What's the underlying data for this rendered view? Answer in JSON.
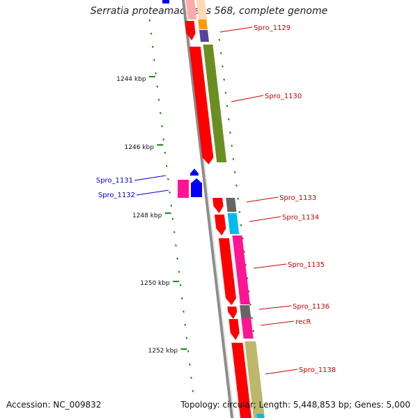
{
  "title": "Serratia proteamaculans 568, complete genome",
  "accession_label": "Accession: NC_009832",
  "info_label": "Topology: circular; Length: 5,448,853 bp; Genes: 5,000",
  "colors": {
    "backbone": "#8c8c8c",
    "cds_forward": "#ff0000",
    "cds_reverse": "#0000ff",
    "label_forward": "#cc0000",
    "label_reverse": "#0000cc",
    "tick": "#1a8a1a",
    "cog_orange": "#ff9900",
    "cog_purple": "#554499",
    "cog_olive": "#6b8e23",
    "cog_gray": "#666666",
    "cog_cyan": "#00bbee",
    "cog_pink": "#ff1493",
    "cog_khaki": "#bdb76b"
  },
  "kbp_labels": [
    "1244 kbp",
    "1246 kbp",
    "1248 kbp",
    "1250 kbp",
    "1252 kbp"
  ],
  "gene_labels_forward": [
    "Spro_1129",
    "Spro_1130",
    "Spro_1133",
    "Spro_1134",
    "Spro_1135",
    "Spro_1136",
    "recR",
    "Spro_1138"
  ],
  "gene_labels_reverse": [
    "Spro_1131",
    "Spro_1132"
  ]
}
